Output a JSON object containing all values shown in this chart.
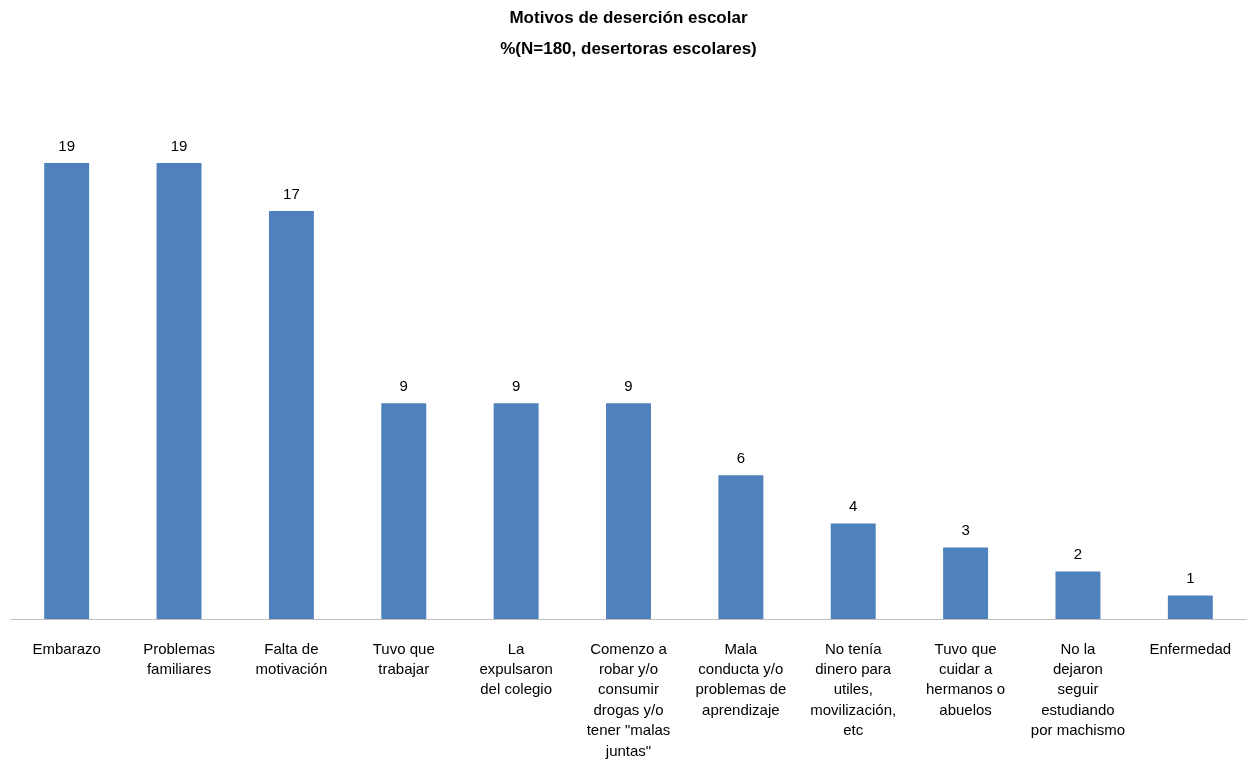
{
  "chart_data": {
    "type": "bar",
    "title": "Motivos de deserción escolar",
    "subtitle": "%(N=180, desertoras escolares)",
    "categories": [
      "Embarazo",
      "Problemas familiares",
      "Falta de motivación",
      "Tuvo que trabajar",
      "La expulsaron del colegio",
      "Comenzo a robar y/o consumir drogas y/o tener \"malas juntas\"",
      "Mala conducta y/o problemas de aprendizaje",
      "No tenía dinero para utiles, movilización, etc",
      "Tuvo que cuidar a hermanos o abuelos",
      "No la dejaron seguir estudiando por machismo",
      "Enfermedad"
    ],
    "values": [
      19,
      19,
      17,
      9,
      9,
      9,
      6,
      4,
      3,
      2,
      1
    ],
    "color": "#4f81bd",
    "data_labels": true,
    "grid": false
  }
}
